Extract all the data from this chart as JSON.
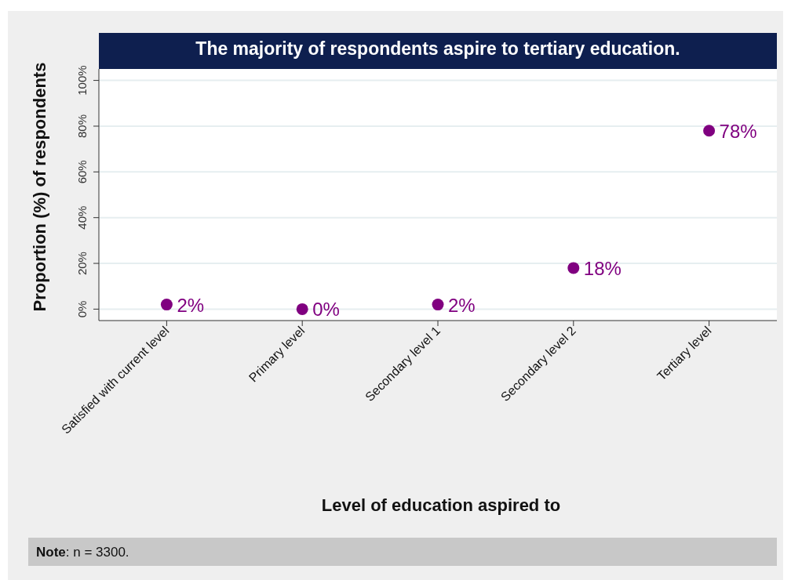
{
  "chart_data": {
    "type": "scatter",
    "title": "The majority of respondents aspire to tertiary education.",
    "xlabel": "Level of education aspired to",
    "ylabel": "Proportion (%) of respondents",
    "categories": [
      "Satisfied with current level",
      "Primary level",
      "Secondary level 1",
      "Secondary level 2",
      "Tertiary level"
    ],
    "values": [
      2,
      0,
      2,
      18,
      78
    ],
    "value_labels": [
      "2%",
      "0%",
      "2%",
      "18%",
      "78%"
    ],
    "color": "#800080",
    "marker": "circle",
    "ylim": [
      -5,
      105
    ],
    "yticks": [
      {
        "value": 0,
        "label": "0%"
      },
      {
        "value": 20,
        "label": "20%"
      },
      {
        "value": 40,
        "label": "40%"
      },
      {
        "value": 60,
        "label": "60%"
      },
      {
        "value": 80,
        "label": "80%"
      },
      {
        "value": 100,
        "label": "100%"
      }
    ],
    "grid": "y",
    "annotations": [
      "Note: n = 3300."
    ]
  }
}
